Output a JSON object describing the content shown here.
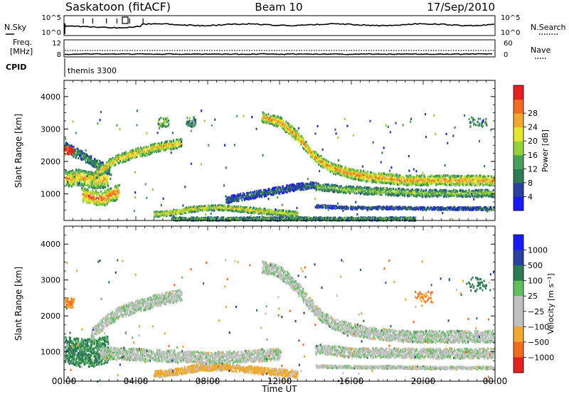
{
  "header": {
    "station": "Saskatoon (fitACF)",
    "beam": "Beam 10",
    "date": "17/Sep/2010"
  },
  "status_panel": {
    "nsky_label": "N.Sky",
    "nsearch_label": "N.Search",
    "left_ticks_top": [
      "10^5",
      "10^0"
    ],
    "right_ticks_top": [
      "10^5",
      "10^0"
    ],
    "freq_label_1": "Freq.",
    "freq_label_2": "[MHz]",
    "left_ticks_freq": [
      "12",
      "8"
    ],
    "right_ticks_freq": [
      "60",
      "0"
    ],
    "nave_label": "Nave",
    "cpid_label": "CPID",
    "cpid_value": "themis 3300"
  },
  "colors": {
    "power_scale": [
      "#1a1aff",
      "#2a3f9e",
      "#2e7a57",
      "#4aa05a",
      "#94d23a",
      "#e6e62b",
      "#f0a82d",
      "#f26b1f",
      "#e62020"
    ],
    "velocity_scale": [
      "#1a1aff",
      "#2a3f9e",
      "#2e7a57",
      "#60c060",
      "#c0c0c0",
      "#c0c0c0",
      "#f0a82d",
      "#f26b1f",
      "#e62020"
    ]
  },
  "chart_data": [
    {
      "type": "heatmap",
      "panel": "power",
      "ylabel": "Slant Range [km]",
      "ylim": [
        180,
        4500
      ],
      "yticks": [
        "1000",
        "2000",
        "3000",
        "4000"
      ],
      "colorbar_label": "Power [dB]",
      "colorbar_ticks": [
        "4",
        "8",
        "12",
        "16",
        "20",
        "24",
        "28"
      ],
      "xlim_hours": [
        0,
        24
      ],
      "xticks": [
        "00:00",
        "04:00",
        "08:00",
        "12:00",
        "16:00",
        "20:00",
        "00:00"
      ],
      "xlabel": "Time UT",
      "features": [
        {
          "kind": "band",
          "t": [
            0.0,
            0.4,
            0.8,
            1.2,
            1.6,
            2.0,
            2.4
          ],
          "range": [
            1500,
            1500,
            1550,
            1500,
            1450,
            1450,
            1500
          ],
          "width": 450,
          "power": 22
        },
        {
          "kind": "band",
          "t": [
            0.0,
            0.5,
            1.0,
            1.5,
            2.0,
            2.5
          ],
          "range": [
            2500,
            2350,
            2200,
            2050,
            1900,
            1750
          ],
          "width": 250,
          "power": 12
        },
        {
          "kind": "band",
          "t": [
            1.5,
            2.0,
            2.5,
            3.0,
            3.5,
            4.0,
            4.5,
            5.0,
            5.5,
            6.0,
            6.5
          ],
          "range": [
            1500,
            1750,
            1950,
            2100,
            2200,
            2300,
            2350,
            2450,
            2500,
            2550,
            2600
          ],
          "width": 250,
          "power": 22
        },
        {
          "kind": "band",
          "t": [
            1.0,
            1.4,
            1.8,
            2.2,
            2.6,
            3.0
          ],
          "range": [
            1000,
            950,
            900,
            900,
            1000,
            1100
          ],
          "width": 400,
          "power": 26
        },
        {
          "kind": "band",
          "t": [
            5.0,
            6.0,
            7.0,
            8.0,
            9.0,
            10.0,
            11.0,
            12.0,
            13.0
          ],
          "range": [
            400,
            450,
            550,
            600,
            600,
            550,
            500,
            450,
            400
          ],
          "width": 150,
          "power": 20
        },
        {
          "kind": "band",
          "t": [
            6.0,
            8.0,
            10.0,
            12.0,
            14.0,
            16.0,
            18.0,
            19.5
          ],
          "range": [
            260,
            260,
            260,
            260,
            260,
            260,
            260,
            260
          ],
          "width": 90,
          "power": 14
        },
        {
          "kind": "band",
          "t": [
            9.0,
            10.0,
            11.0,
            12.0,
            13.0,
            14.0
          ],
          "range": [
            850,
            950,
            1050,
            1150,
            1250,
            1300
          ],
          "width": 200,
          "power": 8
        },
        {
          "kind": "band",
          "t": [
            11.0,
            12.0,
            13.0,
            13.5,
            14.0,
            14.5,
            15.0,
            16.0,
            17.0,
            18.0,
            19.0,
            20.0,
            21.0,
            22.0,
            23.0,
            24.0
          ],
          "range": [
            3400,
            3250,
            2800,
            2450,
            2150,
            1950,
            1800,
            1650,
            1550,
            1500,
            1450,
            1450,
            1450,
            1450,
            1450,
            1450
          ],
          "width": 280,
          "power": 24
        },
        {
          "kind": "band",
          "t": [
            14.0,
            16.0,
            18.0,
            20.0,
            22.0,
            24.0
          ],
          "range": [
            1250,
            1150,
            1100,
            1050,
            1050,
            1050
          ],
          "width": 200,
          "power": 16
        },
        {
          "kind": "band",
          "t": [
            14.0,
            16.0,
            18.0,
            20.0,
            22.0,
            24.0
          ],
          "range": [
            650,
            600,
            600,
            580,
            580,
            580
          ],
          "width": 80,
          "power": 8
        },
        {
          "kind": "patch",
          "t": [
            0.0,
            0.5
          ],
          "range": [
            2250,
            2500
          ],
          "power": 28
        },
        {
          "kind": "patch",
          "t": [
            6.8,
            7.3
          ],
          "range": [
            3100,
            3400
          ],
          "power": 10
        },
        {
          "kind": "patch",
          "t": [
            5.2,
            5.8
          ],
          "range": [
            3100,
            3400
          ],
          "power": 12
        },
        {
          "kind": "patch",
          "t": [
            22.5,
            23.5
          ],
          "range": [
            3100,
            3400
          ],
          "power": 10
        }
      ]
    },
    {
      "type": "heatmap",
      "panel": "velocity",
      "ylabel": "Slant Range [km]",
      "ylim": [
        180,
        4500
      ],
      "yticks": [
        "1000",
        "2000",
        "3000",
        "4000"
      ],
      "colorbar_label": "Velocity [m s⁻¹]",
      "colorbar_ticks": [
        "1000",
        "500",
        "100",
        "25",
        "−25",
        "−100",
        "−500",
        "−1000"
      ],
      "xlim_hours": [
        0,
        24
      ],
      "xticks": [
        "00:00",
        "04:00",
        "08:00",
        "12:00",
        "16:00",
        "20:00",
        "00:00"
      ],
      "xlabel": "Time UT",
      "features": [
        {
          "kind": "band",
          "t": [
            0.0,
            0.4,
            0.8,
            1.2,
            1.6,
            2.0,
            2.4
          ],
          "range": [
            1100,
            1050,
            1000,
            1000,
            1000,
            1050,
            1100
          ],
          "width": 700,
          "velocity": 150
        },
        {
          "kind": "band",
          "t": [
            0.0,
            0.5
          ],
          "range": [
            2400,
            2400
          ],
          "width": 250,
          "velocity": -300
        },
        {
          "kind": "band",
          "t": [
            1.5,
            2.0,
            2.5,
            3.0,
            3.5,
            4.0,
            4.5,
            5.0,
            5.5,
            6.0,
            6.5
          ],
          "range": [
            1500,
            1750,
            1950,
            2100,
            2200,
            2300,
            2350,
            2450,
            2500,
            2550,
            2600
          ],
          "width": 300,
          "velocity": 0
        },
        {
          "kind": "band",
          "t": [
            5.0,
            6.0,
            7.0,
            8.0,
            9.0,
            10.0,
            11.0,
            12.0,
            13.0
          ],
          "range": [
            400,
            450,
            550,
            600,
            600,
            550,
            500,
            450,
            400
          ],
          "width": 180,
          "velocity": -150
        },
        {
          "kind": "band",
          "t": [
            2.0,
            4.0,
            6.0,
            8.0,
            10.0,
            12.0
          ],
          "range": [
            1000,
            950,
            900,
            850,
            900,
            950
          ],
          "width": 300,
          "velocity": 0
        },
        {
          "kind": "band",
          "t": [
            11.0,
            12.0,
            13.0,
            13.5,
            14.0,
            14.5,
            15.0,
            16.0,
            17.0,
            18.0,
            19.0,
            20.0,
            21.0,
            22.0,
            23.0,
            24.0
          ],
          "range": [
            3400,
            3250,
            2800,
            2450,
            2150,
            1950,
            1800,
            1650,
            1550,
            1500,
            1450,
            1450,
            1450,
            1450,
            1450,
            1450
          ],
          "width": 300,
          "velocity": 0
        },
        {
          "kind": "band",
          "t": [
            14.0,
            16.0,
            18.0,
            20.0,
            22.0,
            24.0
          ],
          "range": [
            1100,
            1000,
            1000,
            980,
            980,
            980
          ],
          "width": 250,
          "velocity": 0
        },
        {
          "kind": "band",
          "t": [
            14.0,
            16.0,
            18.0,
            20.0,
            22.0,
            24.0
          ],
          "range": [
            620,
            600,
            600,
            580,
            580,
            580
          ],
          "width": 70,
          "velocity": 0
        },
        {
          "kind": "patch",
          "t": [
            22.5,
            23.5
          ],
          "range": [
            2700,
            3100
          ],
          "velocity": 150
        },
        {
          "kind": "patch",
          "t": [
            19.5,
            20.5
          ],
          "range": [
            2400,
            2700
          ],
          "velocity": -300
        }
      ]
    }
  ]
}
